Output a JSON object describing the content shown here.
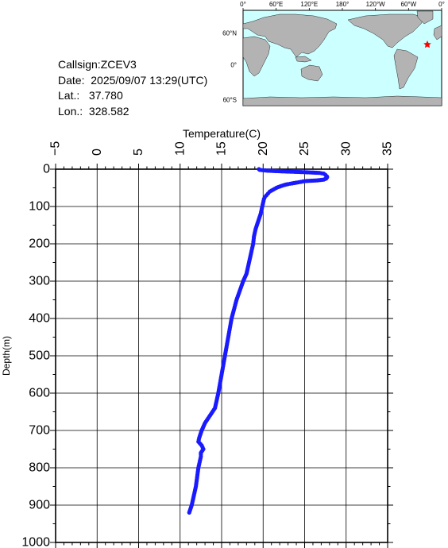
{
  "info": {
    "callsign_line": "Callsign:ZCEV3",
    "date_line": "Date:  2025/09/07 13:29(UTC)",
    "lat_line": "Lat.:   37.780",
    "lon_line": "Lon.:  328.582"
  },
  "map": {
    "top_labels": [
      "0°",
      "60°E",
      "120°E",
      "180°",
      "120°W",
      "60°W",
      "0°"
    ],
    "left_labels": [
      "60°N",
      "0°",
      "60°S"
    ],
    "ocean_color": "#ccffff",
    "land_color": "#b3b3b3",
    "marker_color": "#ff0000",
    "marker_icon": "star-icon"
  },
  "chart_data": {
    "type": "scatter",
    "xlabel": "Temperature(C)",
    "ylabel": "Depth(m)",
    "xlim": [
      -5,
      35
    ],
    "ylim": [
      1000,
      0
    ],
    "x_ticks": [
      -5,
      0,
      5,
      10,
      15,
      20,
      25,
      30,
      35
    ],
    "y_ticks": [
      0,
      100,
      200,
      300,
      400,
      500,
      600,
      700,
      800,
      900,
      1000
    ],
    "grid": true,
    "series_color": "#1a1aff",
    "depth": [
      0,
      2,
      4,
      6,
      8,
      10,
      12,
      15,
      18,
      20,
      22,
      25,
      28,
      30,
      32,
      35,
      38,
      40,
      42,
      45,
      48,
      50,
      55,
      60,
      65,
      70,
      75,
      80,
      90,
      100,
      110,
      120,
      140,
      160,
      180,
      200,
      220,
      250,
      280,
      300,
      350,
      400,
      450,
      500,
      550,
      600,
      640,
      660,
      680,
      700,
      720,
      730,
      740,
      750,
      760,
      770,
      780,
      800,
      850,
      900,
      920
    ],
    "temperature": [
      19.5,
      19.6,
      20.5,
      22.5,
      25.0,
      26.8,
      27.3,
      27.5,
      27.6,
      27.7,
      27.7,
      27.6,
      27.3,
      26.5,
      25.0,
      24.3,
      23.5,
      23.0,
      22.6,
      22.2,
      21.8,
      21.6,
      21.2,
      20.8,
      20.6,
      20.4,
      20.2,
      20.1,
      20.0,
      19.9,
      19.8,
      19.7,
      19.4,
      19.1,
      18.9,
      18.8,
      18.6,
      18.3,
      18.0,
      17.6,
      16.8,
      16.2,
      15.8,
      15.4,
      15.0,
      14.6,
      14.2,
      13.6,
      13.0,
      12.6,
      12.3,
      12.2,
      12.6,
      12.8,
      12.5,
      12.5,
      12.4,
      12.2,
      11.9,
      11.4,
      11.1
    ]
  }
}
